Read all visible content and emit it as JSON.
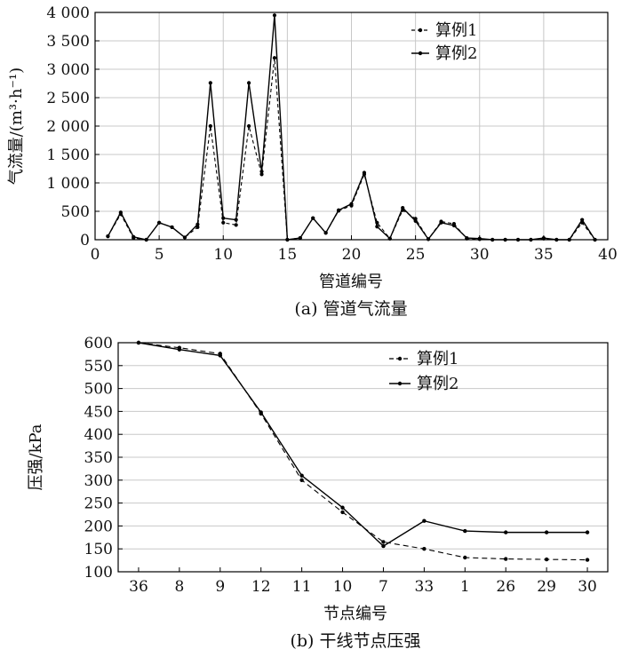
{
  "chart_data": [
    {
      "type": "line",
      "caption": "(a) 管道气流量",
      "xlabel": "管道编号",
      "ylabel": "气流量/(m³·h⁻¹)",
      "xlim": [
        0,
        40
      ],
      "ylim": [
        0,
        4000
      ],
      "xticks": [
        0,
        5,
        10,
        15,
        20,
        25,
        30,
        35,
        40
      ],
      "yticks": [
        0,
        500,
        1000,
        1500,
        2000,
        2500,
        3000,
        3500,
        4000
      ],
      "ytick_labels": [
        "0",
        "500",
        "1 000",
        "1 500",
        "2 000",
        "2 500",
        "3 000",
        "3 500",
        "4 000"
      ],
      "grid": true,
      "legend": "top-right",
      "x": [
        1,
        2,
        3,
        4,
        5,
        6,
        7,
        8,
        9,
        10,
        11,
        12,
        13,
        14,
        15,
        16,
        17,
        18,
        19,
        20,
        21,
        22,
        23,
        24,
        25,
        26,
        27,
        28,
        29,
        30,
        31,
        32,
        33,
        34,
        35,
        36,
        37,
        38,
        39
      ],
      "series": [
        {
          "name": "算例1",
          "style": "dashed",
          "values": [
            60,
            450,
            30,
            0,
            300,
            220,
            40,
            220,
            2000,
            300,
            260,
            2000,
            1150,
            3200,
            0,
            30,
            380,
            120,
            510,
            600,
            1150,
            300,
            20,
            520,
            370,
            10,
            320,
            280,
            20,
            10,
            0,
            0,
            0,
            0,
            20,
            0,
            0,
            300,
            0
          ]
        },
        {
          "name": "算例2",
          "style": "solid",
          "values": [
            60,
            480,
            50,
            0,
            300,
            220,
            40,
            270,
            2760,
            380,
            350,
            2760,
            1200,
            3950,
            0,
            30,
            380,
            120,
            520,
            630,
            1180,
            230,
            20,
            560,
            330,
            10,
            300,
            250,
            30,
            20,
            0,
            0,
            0,
            0,
            30,
            0,
            0,
            350,
            0
          ]
        }
      ]
    },
    {
      "type": "line",
      "caption": "(b) 干线节点压强",
      "xlabel": "节点编号",
      "ylabel": "压强/kPa",
      "categories": [
        "36",
        "8",
        "9",
        "12",
        "11",
        "10",
        "7",
        "33",
        "1",
        "26",
        "29",
        "30"
      ],
      "ylim": [
        100,
        600
      ],
      "yticks": [
        100,
        150,
        200,
        250,
        300,
        350,
        400,
        450,
        500,
        550,
        600
      ],
      "grid": true,
      "legend": "top-right",
      "series": [
        {
          "name": "算例1",
          "style": "dashed",
          "values": [
            600,
            589,
            576,
            445,
            300,
            230,
            165,
            150,
            131,
            128,
            127,
            126
          ]
        },
        {
          "name": "算例2",
          "style": "solid",
          "values": [
            600,
            585,
            572,
            448,
            310,
            240,
            156,
            211,
            189,
            186,
            186,
            186
          ]
        }
      ]
    }
  ]
}
